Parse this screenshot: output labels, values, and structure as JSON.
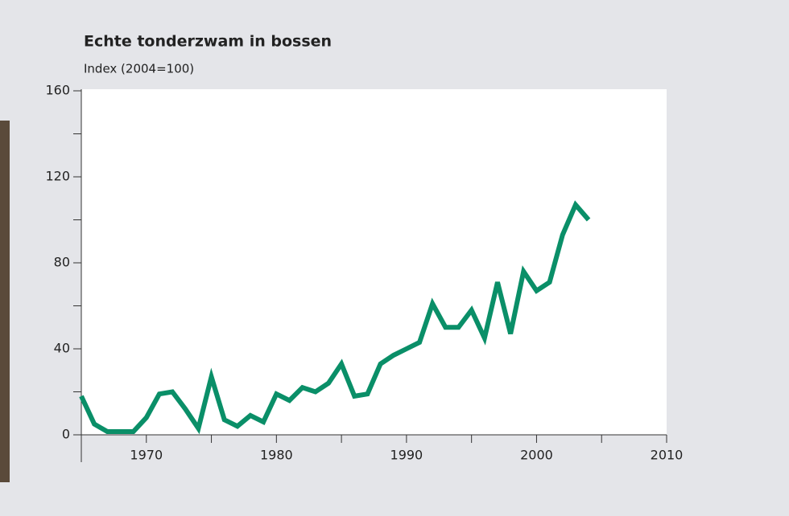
{
  "chart_data": {
    "type": "line",
    "title": "Echte tonderzwam in bossen",
    "subtitle": "Index (2004=100)",
    "x": [
      1965,
      1966,
      1967,
      1968,
      1969,
      1970,
      1971,
      1972,
      1973,
      1974,
      1975,
      1976,
      1977,
      1978,
      1979,
      1980,
      1981,
      1982,
      1983,
      1984,
      1985,
      1986,
      1987,
      1988,
      1989,
      1990,
      1991,
      1992,
      1993,
      1994,
      1995,
      1996,
      1997,
      1998,
      1999,
      2000,
      2001,
      2002,
      2003,
      2004
    ],
    "series": [
      {
        "name": "Echte tonderzwam",
        "color": "#0a8f68",
        "values": [
          18,
          5,
          1.5,
          1.5,
          1.5,
          8,
          19,
          20,
          12,
          3,
          27,
          7,
          4,
          9,
          6,
          19,
          16,
          22,
          20,
          24,
          33,
          18,
          19,
          33,
          37,
          40,
          43,
          61,
          50,
          50,
          58,
          45,
          71,
          47,
          76,
          67,
          71,
          93,
          107,
          100
        ]
      }
    ],
    "xlim": [
      1965,
      2010
    ],
    "xticks": [
      1970,
      1980,
      1990,
      2000,
      2010
    ],
    "xminor_ticks": [
      1975,
      1985,
      1995,
      2005
    ],
    "ylim": [
      0,
      160
    ],
    "yticks": [
      0,
      40,
      80,
      120,
      160
    ],
    "yminor_ticks": [
      20,
      60,
      100,
      140
    ]
  }
}
